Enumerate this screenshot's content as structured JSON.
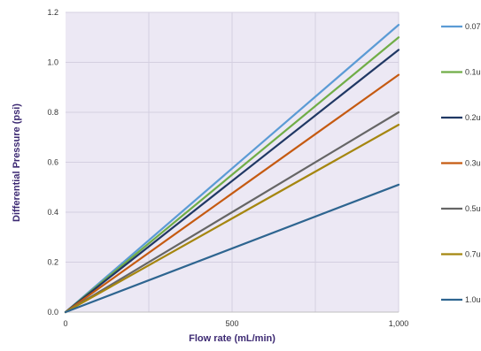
{
  "chart_data": {
    "type": "line",
    "xlabel": "Flow rate (mL/min)",
    "ylabel": "Differential Pressure (psi)",
    "xlim": [
      0,
      1000
    ],
    "ylim": [
      0,
      1.2
    ],
    "x_ticks": [
      0,
      500,
      1000
    ],
    "x_tick_labels": [
      "0",
      "500",
      "1,000"
    ],
    "y_ticks": [
      0,
      0.2,
      0.4,
      0.6,
      0.8,
      1.0,
      1.2
    ],
    "y_tick_labels": [
      "0.0",
      "0.2",
      "0.4",
      "0.6",
      "0.8",
      "1.0",
      "1.2"
    ],
    "grid": true,
    "background_color": "#ece8f4",
    "legend_position": "right",
    "series": [
      {
        "name": "0.07",
        "x": [
          0,
          1000
        ],
        "values": [
          0,
          1.15
        ],
        "color": "#5b9bd5"
      },
      {
        "name": "0.1u",
        "x": [
          0,
          1000
        ],
        "values": [
          0,
          1.1
        ],
        "color": "#70ad47"
      },
      {
        "name": "0.2u",
        "x": [
          0,
          1000
        ],
        "values": [
          0,
          1.05
        ],
        "color": "#203864"
      },
      {
        "name": "0.3u",
        "x": [
          0,
          1000
        ],
        "values": [
          0,
          0.95
        ],
        "color": "#c55a11"
      },
      {
        "name": "0.5u",
        "x": [
          0,
          1000
        ],
        "values": [
          0,
          0.8
        ],
        "color": "#666666"
      },
      {
        "name": "0.7u",
        "x": [
          0,
          1000
        ],
        "values": [
          0,
          0.75
        ],
        "color": "#a5860f"
      },
      {
        "name": "1.0u",
        "x": [
          0,
          1000
        ],
        "values": [
          0,
          0.51
        ],
        "color": "#2e6590"
      }
    ]
  }
}
